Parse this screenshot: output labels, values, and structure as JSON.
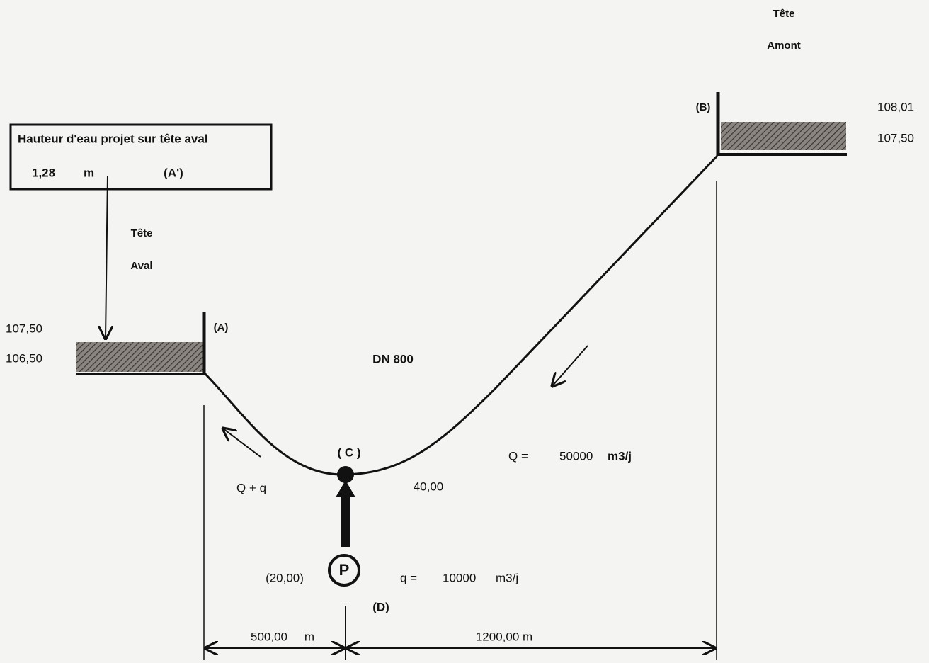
{
  "upstream_head": {
    "label": [
      "Tête",
      "Amont"
    ],
    "point": "(B)",
    "levels": [
      "108,01",
      "107,50"
    ]
  },
  "downstream_box": {
    "title": "Hauteur d'eau projet sur tête aval",
    "value": "1,28",
    "unit": "m",
    "point": "(A')"
  },
  "downstream_head": {
    "label": [
      "Tête",
      "Aval"
    ],
    "point": "(A)",
    "levels": [
      "107,50",
      "106,50"
    ]
  },
  "pipe": {
    "diameter": "DN 800"
  },
  "junction": {
    "point": "( C )",
    "level": "40,00"
  },
  "flows": {
    "main": {
      "label": "Q =",
      "value": "50000",
      "unit": "m3/j"
    },
    "combined": "Q + q",
    "injected": {
      "label": "q =",
      "value": "10000",
      "unit": "m3/j"
    }
  },
  "pump": {
    "symbol": "P",
    "point": "(D)",
    "level": "(20,00)"
  },
  "distances": [
    {
      "value": "500,00",
      "unit": "m"
    },
    {
      "value": "1200,00 m"
    }
  ]
}
